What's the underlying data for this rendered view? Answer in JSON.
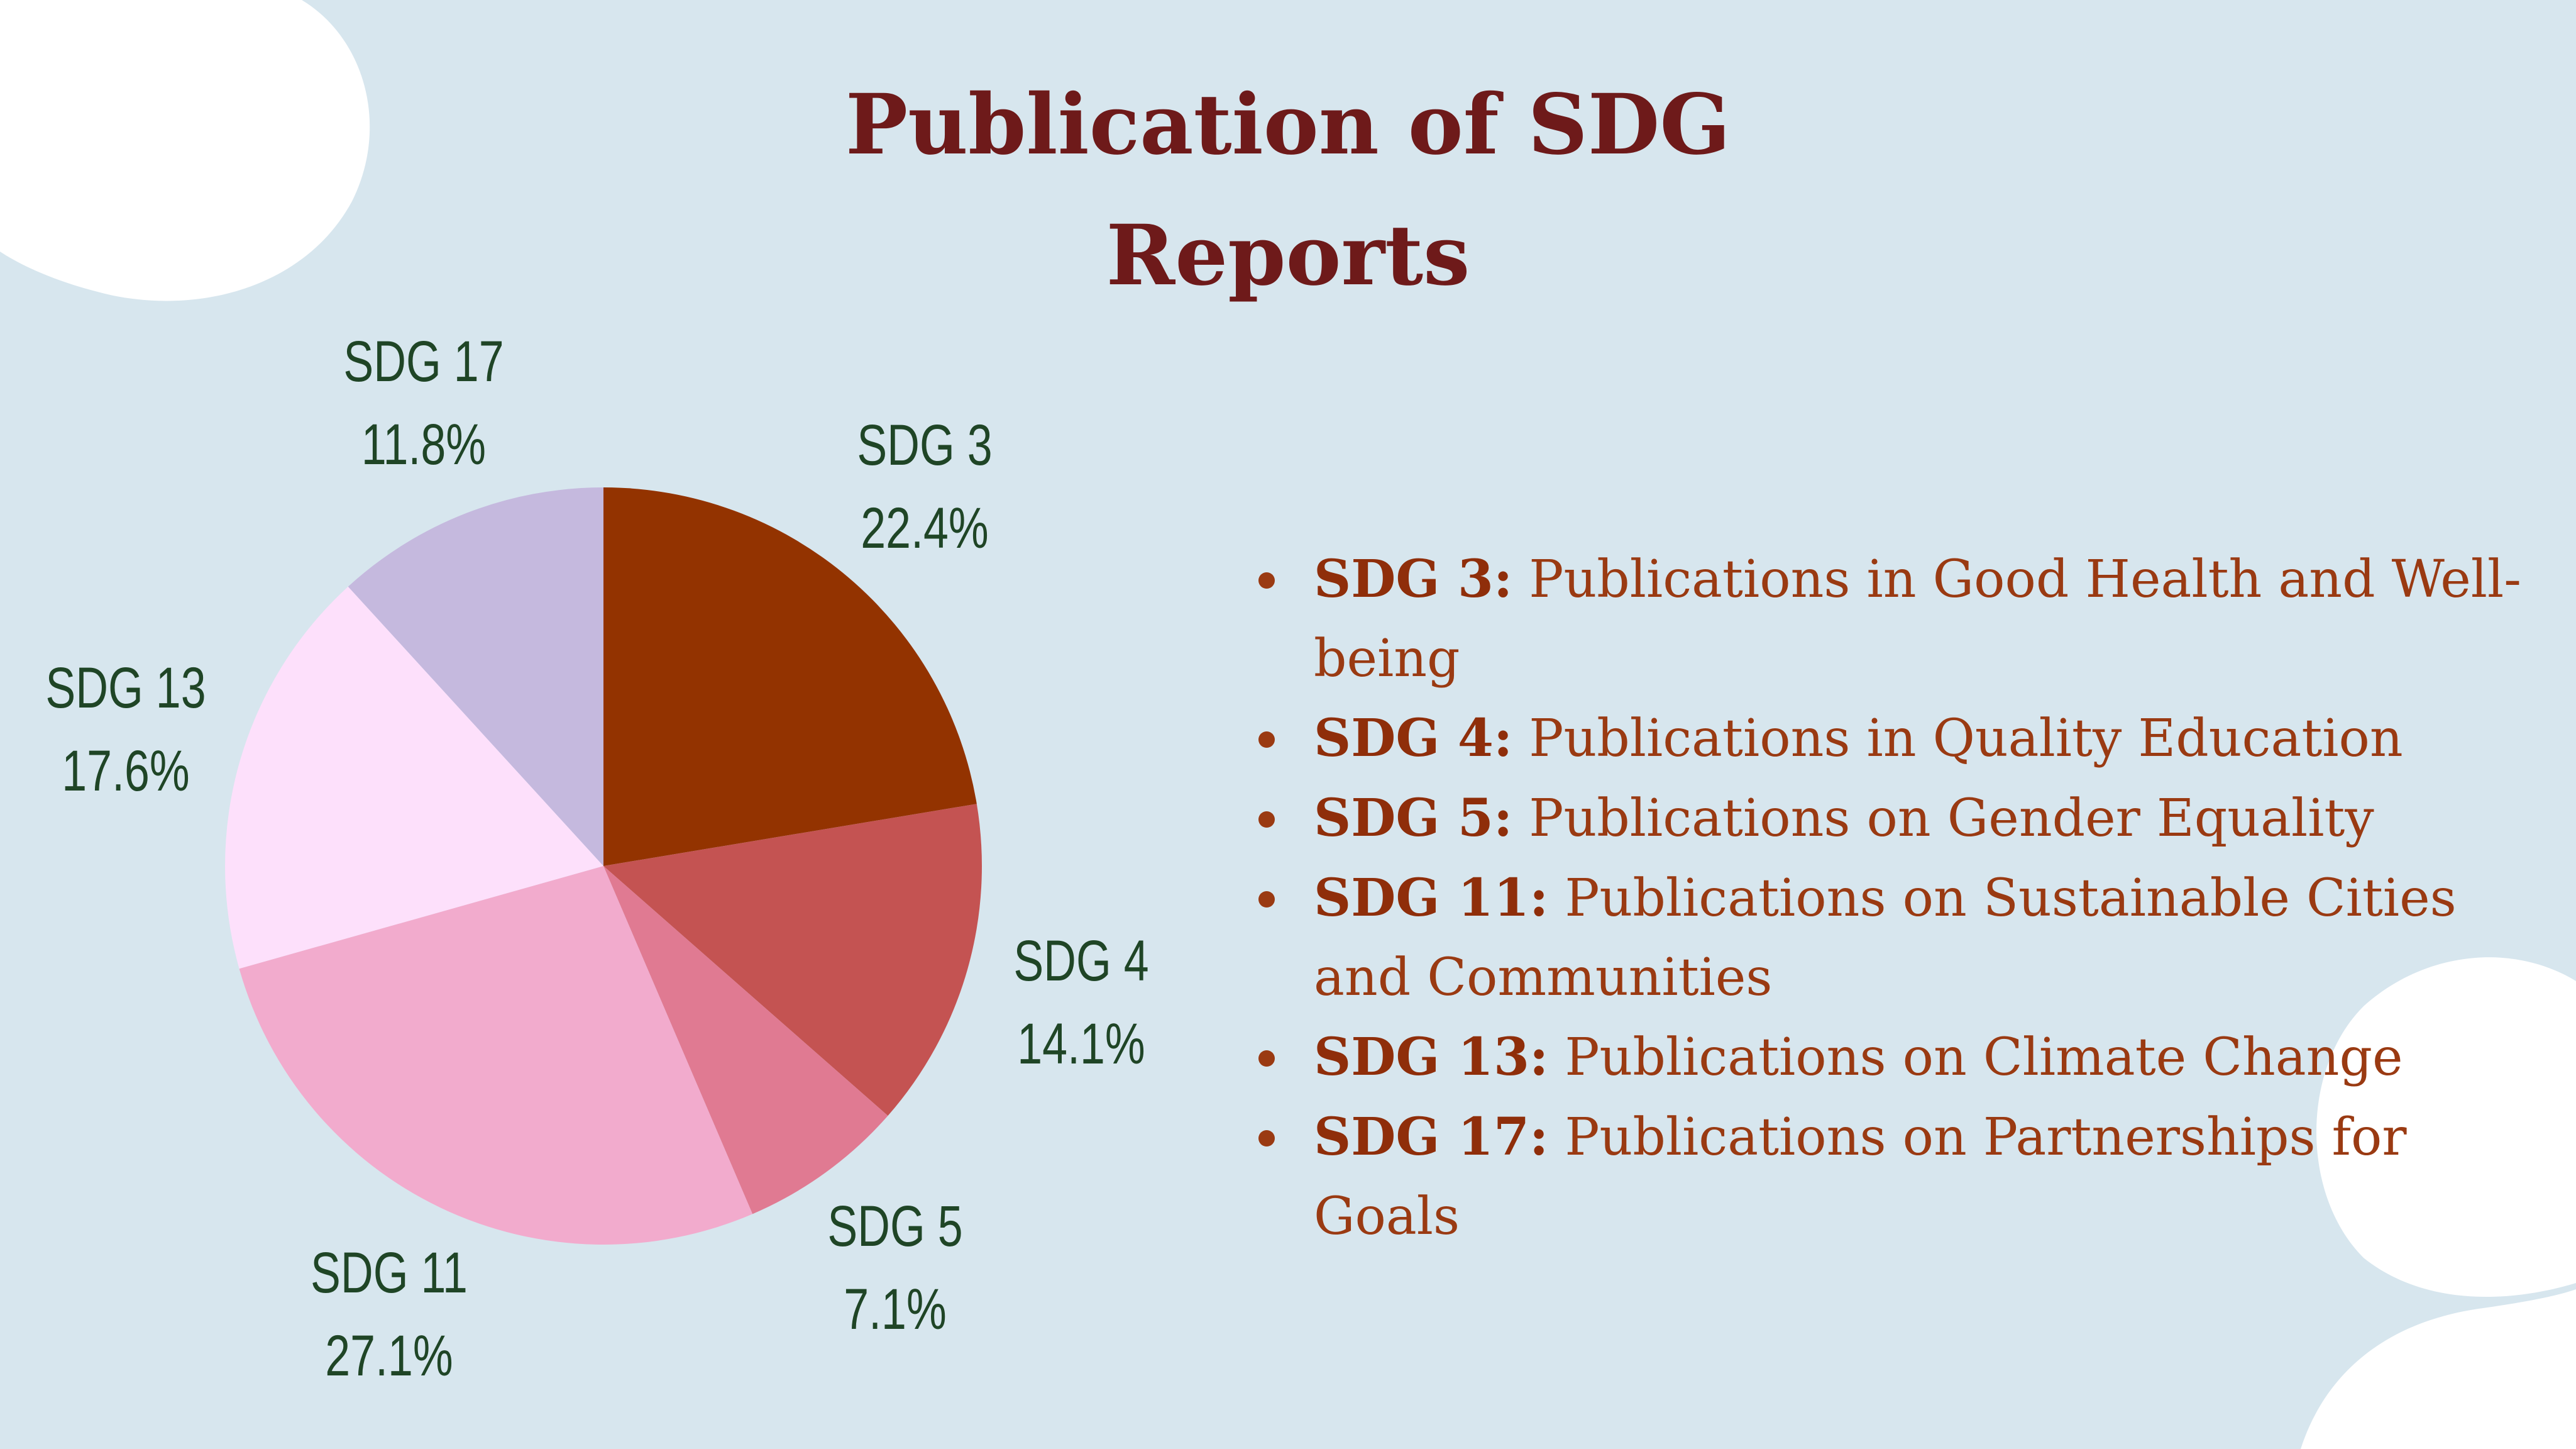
{
  "title_lines": [
    "Publication of SDG",
    "Reports"
  ],
  "chart_data": {
    "type": "pie",
    "title": "Publication of SDG Reports",
    "start": "top, clockwise",
    "slices": [
      {
        "label": "SDG 3",
        "value": 22.4,
        "value_label": "22.4%",
        "color": "#933300"
      },
      {
        "label": "SDG 4",
        "value": 14.1,
        "value_label": "14.1%",
        "color": "#c45352"
      },
      {
        "label": "SDG 5",
        "value": 7.1,
        "value_label": "7.1%",
        "color": "#e07a92"
      },
      {
        "label": "SDG 11",
        "value": 27.1,
        "value_label": "27.1%",
        "color": "#f2abcd"
      },
      {
        "label": "SDG 13",
        "value": 17.6,
        "value_label": "17.6%",
        "color": "#fde0fb"
      },
      {
        "label": "SDG 17",
        "value": 11.8,
        "value_label": "11.8%",
        "color": "#c5b9de"
      }
    ]
  },
  "legend": [
    {
      "key": "SDG 3:",
      "text": " Publications in Good Health and Well-being"
    },
    {
      "key": "SDG 4:",
      "text": " Publications in Quality Education"
    },
    {
      "key": "SDG 5:",
      "text": " Publications on Gender Equality"
    },
    {
      "key": "SDG 11:",
      "text": " Publications on Sustainable Cities and Communities"
    },
    {
      "key": "SDG 13:",
      "text": " Publications on Climate Change"
    },
    {
      "key": "SDG 17:",
      "text": " Publications on Partnerships for Goals"
    }
  ]
}
